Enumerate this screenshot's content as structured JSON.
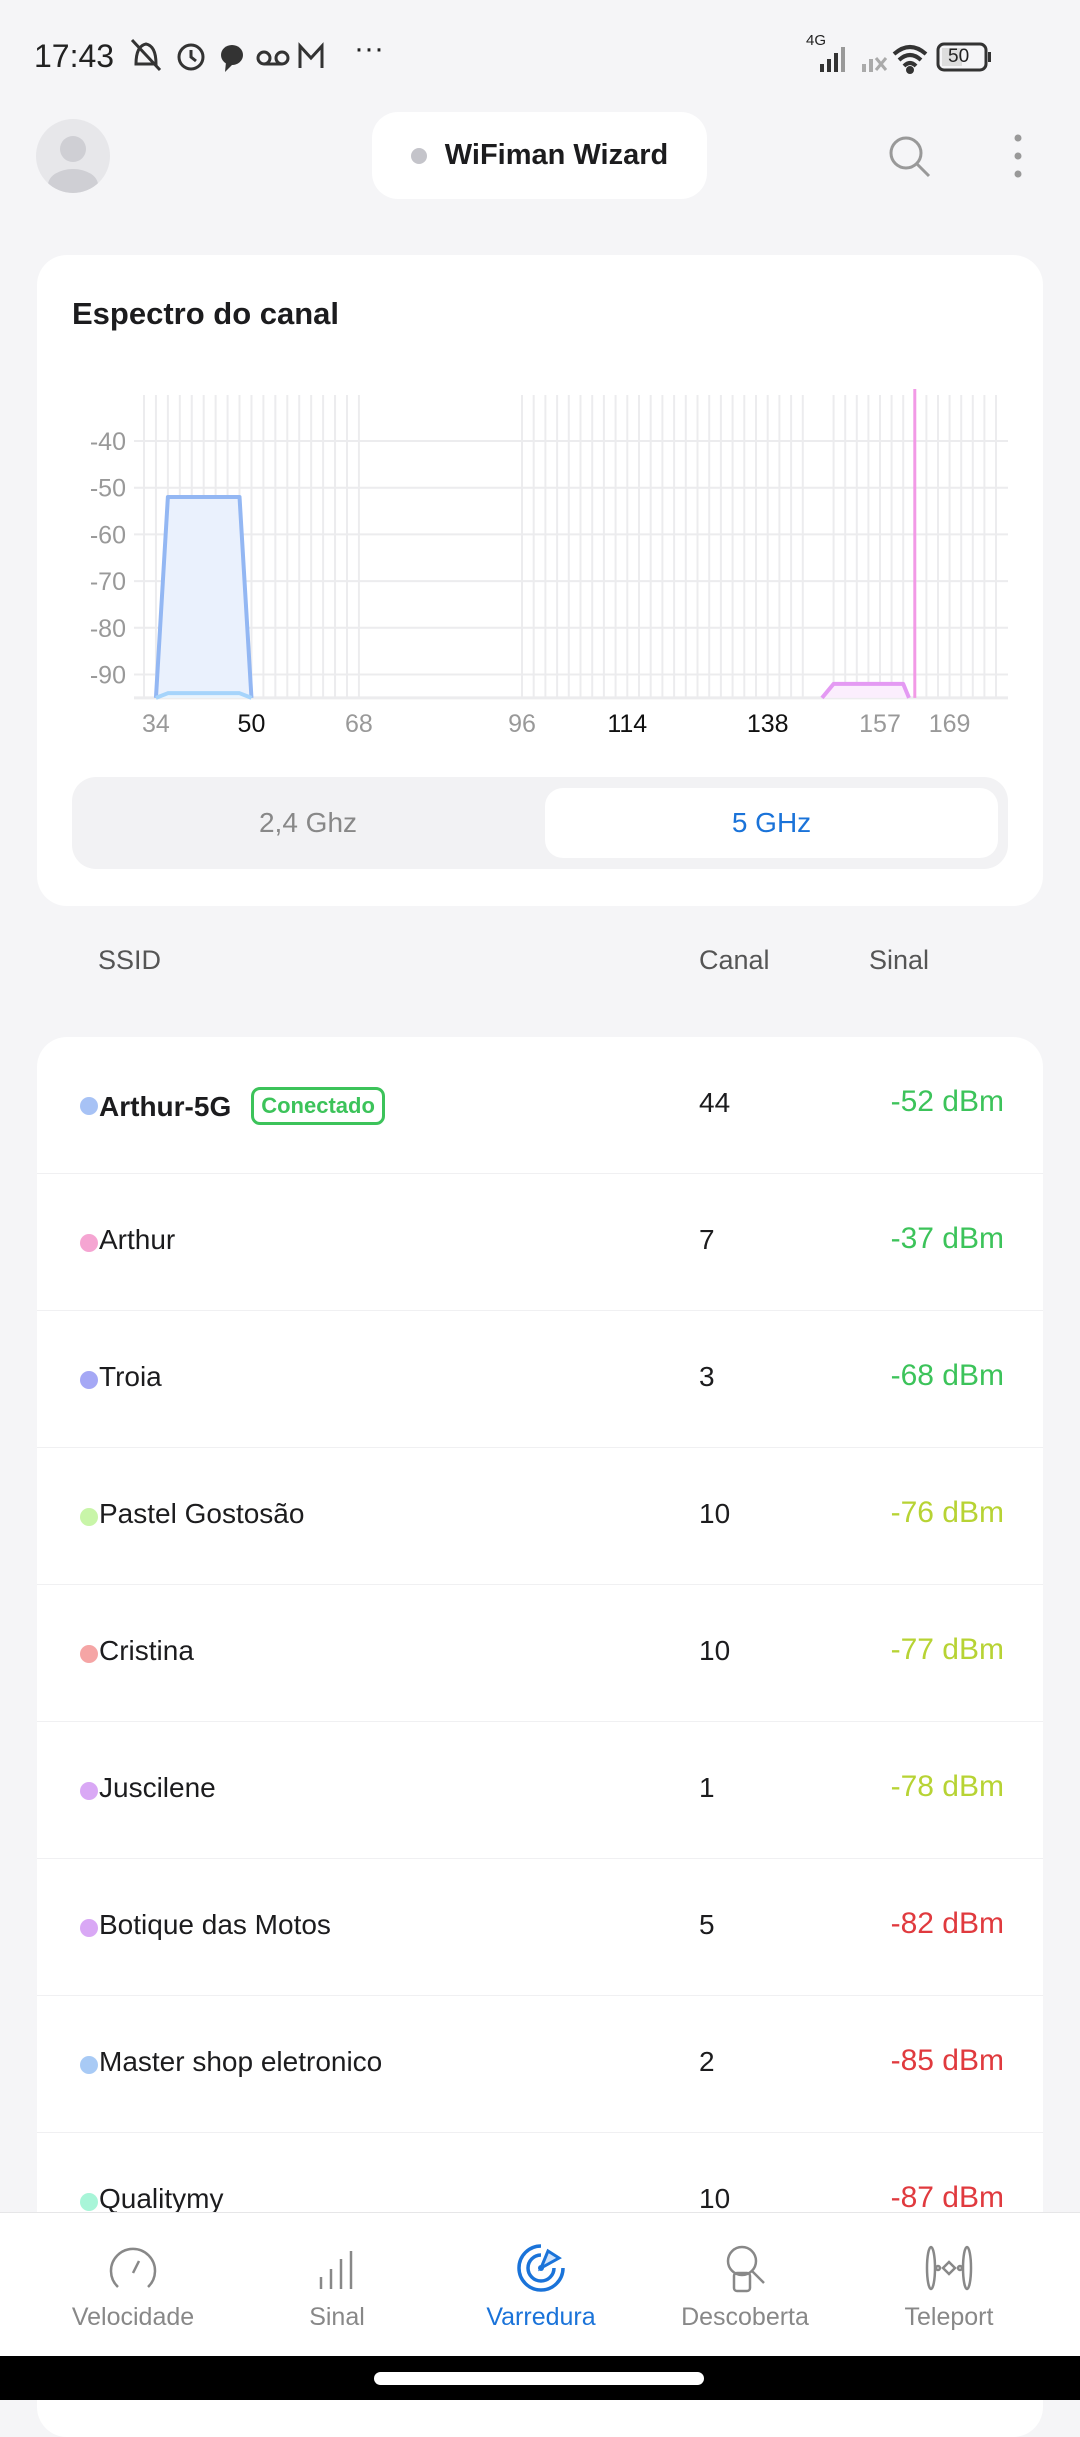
{
  "status_bar": {
    "time": "17:43",
    "network": "4G",
    "battery": "50",
    "icons": [
      "mute-icon",
      "alarm-icon",
      "chat-icon",
      "voicemail-icon",
      "gmail-icon",
      "more-icon",
      "signal-icon",
      "signal-off-icon",
      "wifi-icon",
      "battery-icon"
    ],
    "more": "···"
  },
  "header": {
    "title": "WiFiman Wizard",
    "icons": [
      "avatar",
      "search-icon",
      "kebab-menu-icon"
    ]
  },
  "spectrum": {
    "title": "Espectro do canal",
    "bands": [
      "2,4 Ghz",
      "5 GHz"
    ],
    "selected_band": "5 GHz"
  },
  "chart_data": {
    "type": "area",
    "title": "",
    "xlabel": "",
    "ylabel": "",
    "y_ticks": [
      -40,
      -50,
      -60,
      -70,
      -80,
      -90
    ],
    "ylim": [
      -95,
      -30
    ],
    "x_ticks": [
      {
        "label": "34",
        "bold": false
      },
      {
        "label": "50",
        "bold": true
      },
      {
        "label": "68",
        "bold": false
      },
      {
        "label": "96",
        "bold": false
      },
      {
        "label": "114",
        "bold": true
      },
      {
        "label": "138",
        "bold": true
      },
      {
        "label": "157",
        "bold": false
      },
      {
        "label": "169",
        "bold": false
      }
    ],
    "grid": true,
    "series": [
      {
        "channels_top": [
          36,
          48
        ],
        "channels_base": [
          34,
          50
        ],
        "dbm": -52,
        "color": "#93b7f3",
        "fill": "#eaf1fd"
      },
      {
        "channels_top": [
          36,
          48
        ],
        "channels_base": [
          34,
          50
        ],
        "dbm": -94,
        "color": "#a6d4fb",
        "fill": "#eaf4fd"
      },
      {
        "channels_top": [
          149,
          161
        ],
        "channels_base": [
          147,
          162
        ],
        "dbm": -92,
        "color": "#e49af3",
        "fill": "#fbeefd"
      },
      {
        "vertical_channel": 163,
        "color": "#f29ae6"
      }
    ]
  },
  "table": {
    "headers": {
      "ssid": "SSID",
      "channel": "Canal",
      "signal": "Sinal"
    },
    "connected_label": "Conectado",
    "rows": [
      {
        "ssid": "Arthur-5G",
        "channel": "44",
        "signal": "-52 dBm",
        "dot": "#a7c2f5",
        "sig_color": "#3cc35a",
        "connected": true
      },
      {
        "ssid": "Arthur",
        "channel": "7",
        "signal": "-37 dBm",
        "dot": "#f5a5d2",
        "sig_color": "#3cc35a"
      },
      {
        "ssid": "Troia",
        "channel": "3",
        "signal": "-68 dBm",
        "dot": "#a5a8f5",
        "sig_color": "#3cc35a"
      },
      {
        "ssid": "Pastel Gostosão",
        "channel": "10",
        "signal": "-76 dBm",
        "dot": "#c8f5a8",
        "sig_color": "#b7d334"
      },
      {
        "ssid": "Cristina",
        "channel": "10",
        "signal": "-77 dBm",
        "dot": "#f5a5a5",
        "sig_color": "#b7d334"
      },
      {
        "ssid": "Juscilene",
        "channel": "1",
        "signal": "-78 dBm",
        "dot": "#d9a8f5",
        "sig_color": "#b7d334"
      },
      {
        "ssid": "Botique das Motos",
        "channel": "5",
        "signal": "-82 dBm",
        "dot": "#d9a8f5",
        "sig_color": "#e03a3e"
      },
      {
        "ssid": "Master shop eletronico",
        "channel": "2",
        "signal": "-85 dBm",
        "dot": "#a8caf5",
        "sig_color": "#e03a3e"
      },
      {
        "ssid": "Qualitymy",
        "channel": "10",
        "signal": "-87 dBm",
        "dot": "#a8f5d8",
        "sig_color": "#e03a3e"
      }
    ]
  },
  "nav": {
    "active": "Varredura",
    "accent": "#1a73d9",
    "items": [
      {
        "label": "Velocidade",
        "icon": "speedometer-icon"
      },
      {
        "label": "Sinal",
        "icon": "signal-bars-icon"
      },
      {
        "label": "Varredura",
        "icon": "radar-icon"
      },
      {
        "label": "Descoberta",
        "icon": "device-search-icon"
      },
      {
        "label": "Teleport",
        "icon": "teleport-icon"
      }
    ]
  }
}
